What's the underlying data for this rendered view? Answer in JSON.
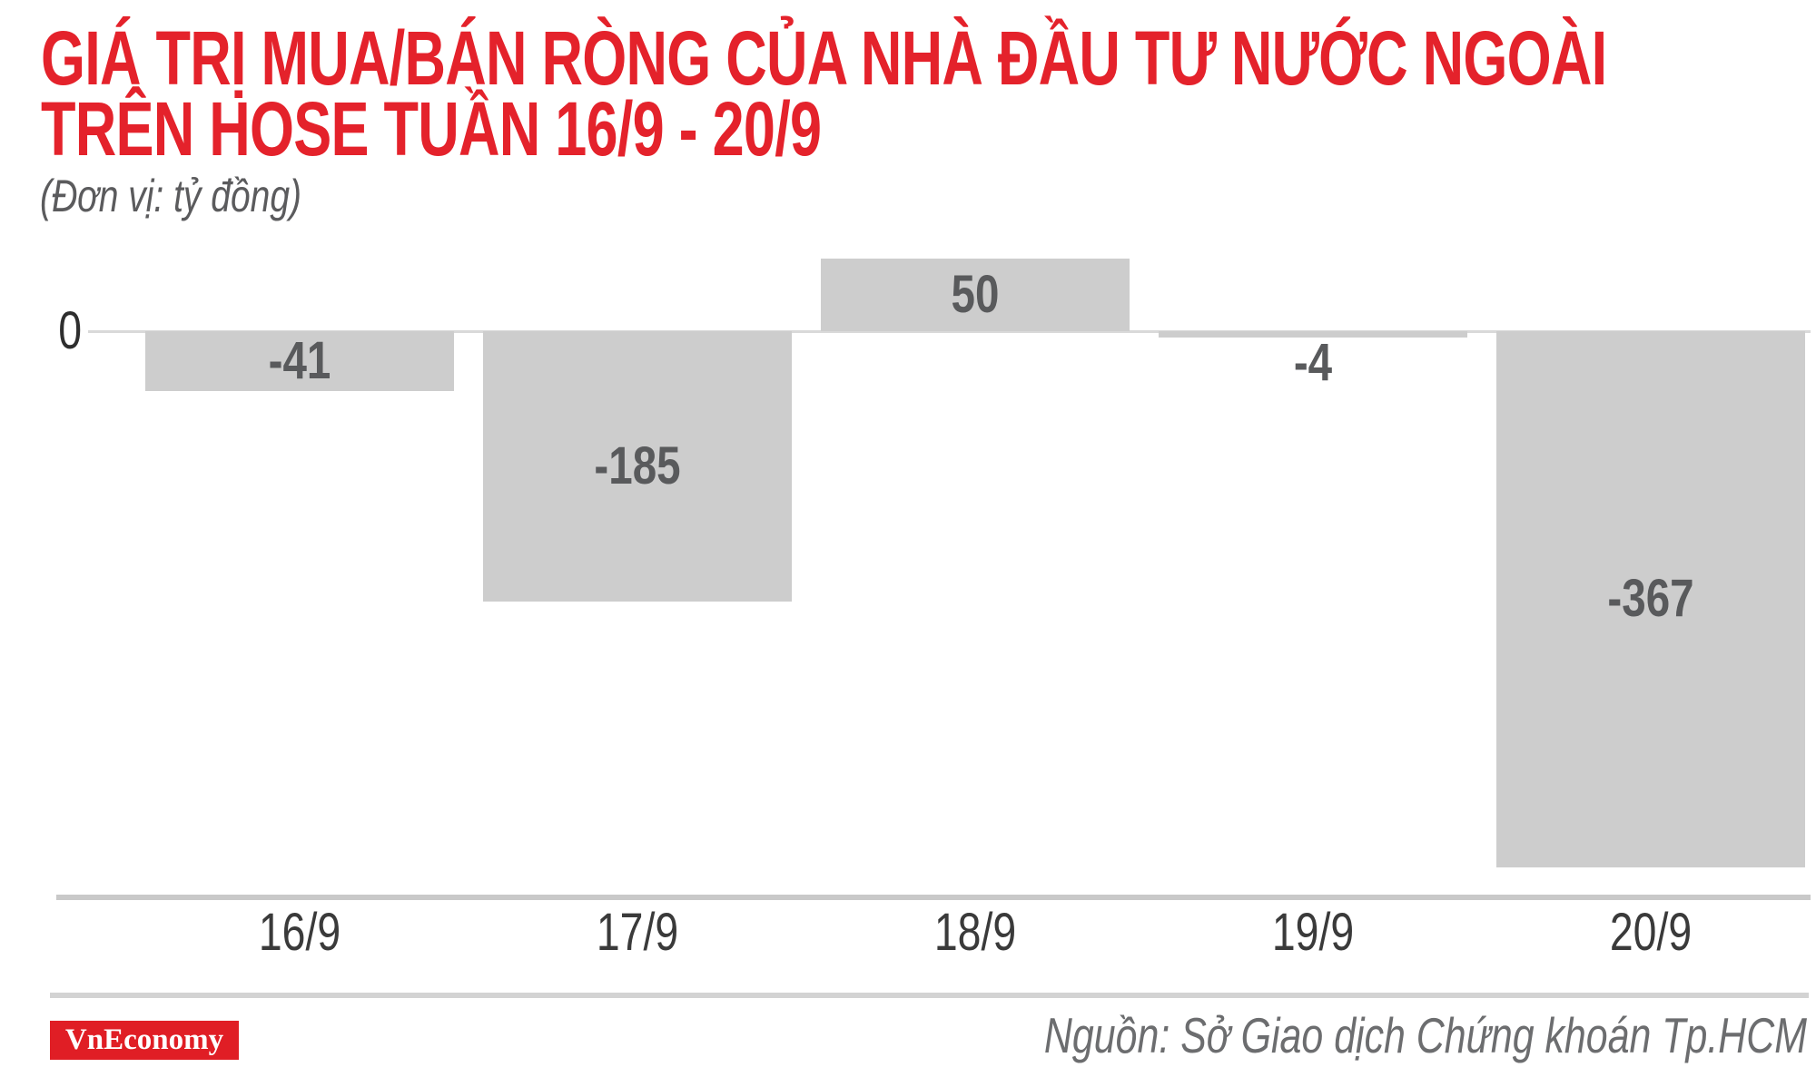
{
  "title": {
    "line1": "GIÁ TRỊ MUA/BÁN RÒNG CỦA NHÀ ĐẦU TƯ NƯỚC NGOÀI",
    "line2": "TRÊN HOSE TUẦN 16/9 - 20/9"
  },
  "subtitle": "(Đơn vị: tỷ đồng)",
  "axis": {
    "zero_label": "0"
  },
  "chart_data": {
    "type": "bar",
    "categories": [
      "16/9",
      "17/9",
      "18/9",
      "19/9",
      "20/9"
    ],
    "values": [
      -41,
      -185,
      50,
      -4,
      -367
    ],
    "data_labels": [
      "-41",
      "-185",
      "50",
      "-4",
      "-367"
    ],
    "title": "GIÁ TRỊ MUA/BÁN RÒNG CỦA NHÀ ĐẦU TƯ NƯỚC NGOÀI TRÊN HOSE TUẦN 16/9 - 20/9",
    "xlabel": "",
    "ylabel": "tỷ đồng",
    "ylim": [
      -400,
      80
    ],
    "baseline": 0,
    "grid": false,
    "legend": "none",
    "bar_color": "#cdcdcd"
  },
  "footer": {
    "logo_text": "VnEconomy",
    "source": "Nguồn: Sở Giao dịch Chứng khoán Tp.HCM"
  },
  "colors": {
    "title_red": "#e4222b",
    "logo_red": "#e01e25",
    "bar_gray": "#cdcdcd",
    "zero_line": "#d9d9d9",
    "axis_separator": "#c9c9c9",
    "footer_divider": "#d3d3d3",
    "value_label": "#595a5c",
    "tick_label": "#3a3a3a",
    "zero_label": "#2e2e2e",
    "subtitle_gray": "#5b5b5d",
    "source_gray": "#6c6d6f"
  }
}
